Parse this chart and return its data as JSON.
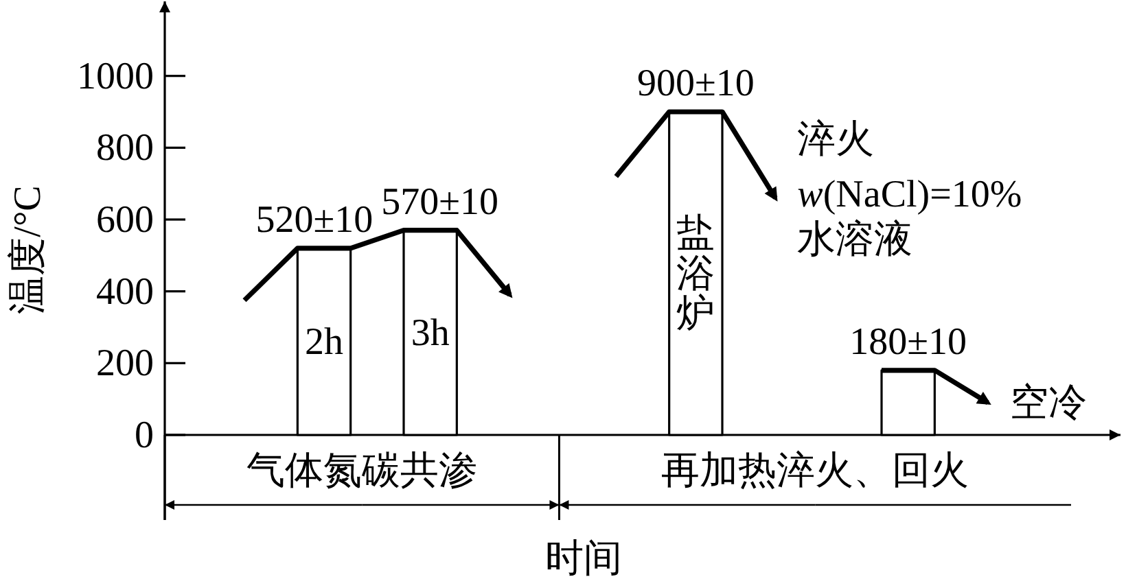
{
  "chart_data": {
    "type": "line",
    "xlabel": "时间",
    "ylabel": "温度/°C",
    "categories": [
      null,
      null,
      null,
      null,
      null,
      null,
      null,
      null,
      null,
      null,
      null,
      null,
      null,
      null,
      null,
      null,
      null,
      null
    ],
    "ylim": [
      0,
      1200
    ],
    "yticks": [
      0,
      200,
      400,
      600,
      800,
      1000
    ],
    "tick_labels": "y",
    "line_style": "solid",
    "series": [
      {
        "color": "#000000",
        "values": [
          null,
          375,
          520,
          520,
          570,
          570,
          390,
          null,
          null,
          null,
          null,
          null,
          null,
          null,
          null,
          null,
          null,
          null
        ]
      },
      {
        "color": "#000000",
        "values": [
          null,
          null,
          null,
          null,
          null,
          null,
          null,
          null,
          720,
          900,
          900,
          660,
          null,
          null,
          null,
          null,
          null,
          null
        ]
      },
      {
        "color": "#000000",
        "values": [
          null,
          null,
          null,
          null,
          null,
          null,
          null,
          null,
          null,
          null,
          null,
          null,
          null,
          180,
          180,
          90,
          null,
          null
        ]
      },
      {
        "type": "area",
        "name": "2h",
        "color": "#ffffff",
        "values": [
          null,
          null,
          520,
          520,
          null,
          null,
          null,
          null,
          null,
          null,
          null,
          null,
          null,
          null,
          null,
          null,
          null,
          null
        ],
        "value_labels": [
          null,
          null,
          "520±10",
          null,
          null,
          null,
          null,
          null,
          null,
          null,
          null,
          null,
          null,
          null,
          null,
          null,
          null,
          null
        ]
      },
      {
        "type": "area",
        "name": "3h",
        "color": "#ffffff",
        "values": [
          null,
          null,
          null,
          null,
          570,
          570,
          null,
          null,
          null,
          null,
          null,
          null,
          null,
          null,
          null,
          null,
          null,
          null
        ],
        "value_labels": [
          null,
          null,
          null,
          null,
          "570±10",
          null,
          null,
          null,
          null,
          null,
          null,
          null,
          null,
          null,
          null,
          null,
          null,
          null
        ]
      },
      {
        "type": "area",
        "name": "盐浴炉",
        "color": "#ffffff",
        "values": [
          null,
          null,
          null,
          null,
          null,
          null,
          null,
          null,
          null,
          900,
          900,
          null,
          null,
          null,
          null,
          null,
          null,
          null
        ],
        "value_labels": [
          null,
          null,
          null,
          null,
          null,
          null,
          null,
          null,
          null,
          "900±10",
          null,
          null,
          null,
          null,
          null,
          null,
          null,
          null
        ]
      },
      {
        "type": "area",
        "color": "#ffffff",
        "values": [
          null,
          null,
          null,
          null,
          null,
          null,
          null,
          null,
          null,
          null,
          null,
          null,
          null,
          180,
          180,
          null,
          null,
          null
        ],
        "value_labels": [
          null,
          null,
          null,
          null,
          null,
          null,
          null,
          null,
          null,
          null,
          null,
          null,
          null,
          "180±10",
          null,
          null,
          null,
          null
        ]
      }
    ],
    "annotations": [
      "淬火",
      "*w*(NaCl)=10%",
      "水溶液",
      "空冷",
      "气体氮碳共渗",
      "再加热淬火、回火"
    ]
  }
}
